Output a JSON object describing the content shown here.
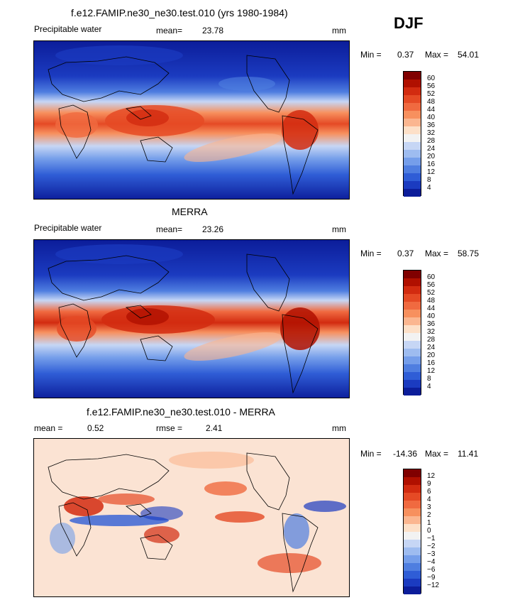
{
  "season": "DJF",
  "panels": [
    {
      "id": "model",
      "title": "f.e12.FAMIP.ne30_ne30.test.010 (yrs 1980-1984)",
      "left_label": "Precipitable water",
      "stat_label": "mean=",
      "stat_value": "23.78",
      "units": "mm",
      "min_label": "Min =",
      "min_value": "0.37",
      "max_label": "Max =",
      "max_value": "54.01",
      "ticks": [
        "60",
        "56",
        "52",
        "48",
        "44",
        "40",
        "36",
        "32",
        "28",
        "24",
        "20",
        "16",
        "12",
        "8",
        "4"
      ]
    },
    {
      "id": "obs",
      "title": "MERRA",
      "left_label": "Precipitable water",
      "stat_label": "mean=",
      "stat_value": "23.26",
      "units": "mm",
      "min_label": "Min =",
      "min_value": "0.37",
      "max_label": "Max =",
      "max_value": "58.75",
      "ticks": [
        "60",
        "56",
        "52",
        "48",
        "44",
        "40",
        "36",
        "32",
        "28",
        "24",
        "20",
        "16",
        "12",
        "8",
        "4"
      ]
    },
    {
      "id": "diff",
      "title": "f.e12.FAMIP.ne30_ne30.test.010 - MERRA",
      "left_label": "mean =",
      "left_value": "0.52",
      "stat_label": "rmse =",
      "stat_value": "2.41",
      "units": "mm",
      "min_label": "Min =",
      "min_value": "-14.36",
      "max_label": "Max =",
      "max_value": "11.41",
      "ticks": [
        "12",
        "9",
        "6",
        "4",
        "3",
        "2",
        "1",
        "0",
        "−1",
        "−2",
        "−3",
        "−4",
        "−6",
        "−9",
        "−12"
      ]
    }
  ],
  "colors": {
    "scale": [
      "#800000",
      "#b01000",
      "#d22b10",
      "#e54a25",
      "#f06a40",
      "#f7905e",
      "#fbb690",
      "#fde0c8",
      "#f2f2f2",
      "#c6d6f5",
      "#9ebcf0",
      "#759eea",
      "#4f7ee0",
      "#2f5dd6",
      "#1b3bc0",
      "#0c1d9a"
    ]
  }
}
